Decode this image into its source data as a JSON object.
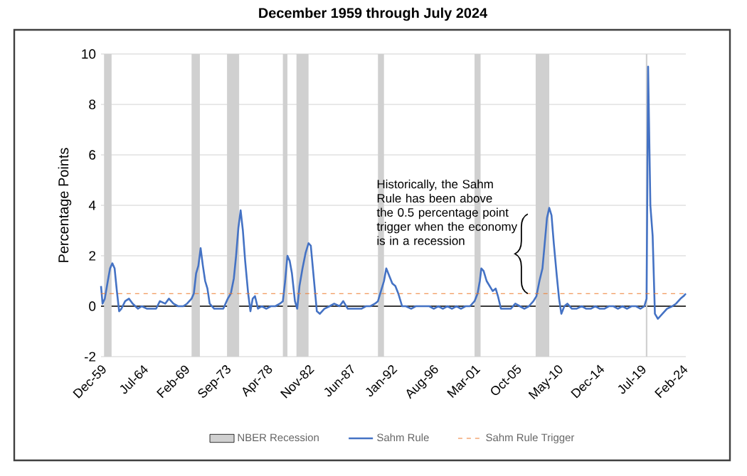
{
  "chart_data": {
    "type": "line",
    "title": "December 1959 through July 2024",
    "ylabel": "Percentage Points",
    "annotations": [
      {
        "text": "Historically, the Sahm Rule has been above the 0.5 percentage point trigger when the economy is in a recession",
        "x": "2006-06",
        "y": 0.5
      }
    ],
    "xlim": [
      "1959-12",
      "2024-07"
    ],
    "xticks": [
      {
        "value": "1959-12",
        "label": "Dec-59"
      },
      {
        "value": "1964-07",
        "label": "Jul-64"
      },
      {
        "value": "1969-02",
        "label": "Feb-69"
      },
      {
        "value": "1973-09",
        "label": "Sep-73"
      },
      {
        "value": "1978-04",
        "label": "Apr-78"
      },
      {
        "value": "1982-11",
        "label": "Nov-82"
      },
      {
        "value": "1987-06",
        "label": "Jun-87"
      },
      {
        "value": "1992-01",
        "label": "Jan-92"
      },
      {
        "value": "1996-08",
        "label": "Aug-96"
      },
      {
        "value": "2001-03",
        "label": "Mar-01"
      },
      {
        "value": "2005-10",
        "label": "Oct-05"
      },
      {
        "value": "2010-05",
        "label": "May-10"
      },
      {
        "value": "2014-12",
        "label": "Dec-14"
      },
      {
        "value": "2019-07",
        "label": "Jul-19"
      },
      {
        "value": "2024-02",
        "label": "Feb-24"
      }
    ],
    "ylim": [
      -2,
      10
    ],
    "yticks": [
      -2,
      0,
      2,
      4,
      6,
      8,
      10
    ],
    "grid": "y",
    "legend": "bottom",
    "series": [
      {
        "name": "Sahm Rule",
        "color": "#4472c4",
        "line_style": "solid",
        "x": [
          "1959-12",
          "1960-02",
          "1960-05",
          "1960-09",
          "1960-12",
          "1961-03",
          "1961-06",
          "1961-09",
          "1961-12",
          "1962-03",
          "1962-08",
          "1963-01",
          "1963-06",
          "1964-01",
          "1964-06",
          "1965-01",
          "1965-06",
          "1966-01",
          "1966-06",
          "1967-01",
          "1967-06",
          "1967-12",
          "1968-06",
          "1969-01",
          "1969-06",
          "1969-12",
          "1970-03",
          "1970-06",
          "1970-09",
          "1970-12",
          "1971-03",
          "1971-06",
          "1971-09",
          "1971-12",
          "1972-06",
          "1973-01",
          "1973-06",
          "1973-12",
          "1974-04",
          "1974-08",
          "1974-11",
          "1975-02",
          "1975-05",
          "1975-08",
          "1975-11",
          "1976-03",
          "1976-06",
          "1976-09",
          "1976-12",
          "1977-04",
          "1977-09",
          "1978-03",
          "1978-09",
          "1979-03",
          "1979-09",
          "1980-01",
          "1980-04",
          "1980-07",
          "1980-10",
          "1981-01",
          "1981-05",
          "1981-08",
          "1981-11",
          "1982-03",
          "1982-07",
          "1982-11",
          "1983-02",
          "1983-06",
          "1983-10",
          "1984-02",
          "1984-08",
          "1985-03",
          "1985-09",
          "1986-04",
          "1986-09",
          "1987-03",
          "1987-09",
          "1988-03",
          "1988-09",
          "1989-03",
          "1989-09",
          "1990-03",
          "1990-07",
          "1990-11",
          "1991-03",
          "1991-06",
          "1991-10",
          "1992-02",
          "1992-06",
          "1992-10",
          "1993-03",
          "1993-08",
          "1994-03",
          "1994-09",
          "1995-03",
          "1995-09",
          "1996-03",
          "1996-09",
          "1997-03",
          "1997-09",
          "1998-03",
          "1998-09",
          "1999-03",
          "1999-09",
          "2000-03",
          "2000-09",
          "2001-03",
          "2001-07",
          "2001-10",
          "2001-12",
          "2002-03",
          "2002-07",
          "2002-11",
          "2003-03",
          "2003-07",
          "2003-10",
          "2004-02",
          "2004-08",
          "2005-03",
          "2005-09",
          "2006-03",
          "2006-09",
          "2007-03",
          "2007-09",
          "2008-01",
          "2008-05",
          "2008-09",
          "2008-12",
          "2009-03",
          "2009-06",
          "2009-09",
          "2009-12",
          "2010-04",
          "2010-07",
          "2010-10",
          "2011-02",
          "2011-06",
          "2011-12",
          "2012-06",
          "2013-01",
          "2013-07",
          "2014-01",
          "2014-07",
          "2015-01",
          "2015-07",
          "2016-01",
          "2016-07",
          "2017-01",
          "2017-07",
          "2018-01",
          "2018-07",
          "2019-01",
          "2019-07",
          "2019-12",
          "2020-03",
          "2020-05",
          "2020-08",
          "2020-11",
          "2021-02",
          "2021-06",
          "2021-12",
          "2022-06",
          "2023-01",
          "2023-06",
          "2023-12",
          "2024-04",
          "2024-07"
        ],
        "values": [
          0.8,
          0.1,
          0.3,
          1.0,
          1.5,
          1.7,
          1.5,
          0.6,
          -0.2,
          -0.1,
          0.2,
          0.3,
          0.1,
          -0.1,
          0.0,
          -0.1,
          -0.1,
          -0.1,
          0.2,
          0.1,
          0.3,
          0.1,
          0.0,
          0.0,
          0.1,
          0.3,
          0.5,
          1.3,
          1.6,
          2.3,
          1.6,
          1.0,
          0.7,
          0.1,
          -0.1,
          -0.1,
          -0.1,
          0.3,
          0.5,
          1.1,
          2.0,
          3.1,
          3.8,
          3.0,
          1.8,
          0.5,
          -0.2,
          0.3,
          0.4,
          -0.1,
          0.0,
          -0.1,
          0.0,
          0.0,
          0.1,
          0.2,
          1.0,
          2.0,
          1.8,
          1.3,
          0.2,
          -0.1,
          0.8,
          1.5,
          2.1,
          2.5,
          2.4,
          1.1,
          -0.2,
          -0.3,
          -0.1,
          0.0,
          0.1,
          0.0,
          0.2,
          -0.1,
          -0.1,
          -0.1,
          -0.1,
          0.0,
          0.0,
          0.1,
          0.2,
          0.6,
          1.0,
          1.5,
          1.2,
          0.9,
          0.8,
          0.5,
          0.0,
          0.0,
          -0.1,
          0.0,
          0.0,
          0.0,
          0.0,
          -0.1,
          0.0,
          -0.1,
          0.0,
          -0.1,
          0.0,
          -0.1,
          0.0,
          0.0,
          0.2,
          0.5,
          1.0,
          1.5,
          1.4,
          1.0,
          0.8,
          0.6,
          0.7,
          0.4,
          -0.1,
          -0.1,
          -0.1,
          0.1,
          0.0,
          -0.1,
          0.0,
          0.2,
          0.4,
          1.0,
          1.5,
          2.5,
          3.5,
          3.9,
          3.6,
          2.5,
          1.2,
          0.3,
          -0.3,
          0.0,
          0.1,
          -0.1,
          -0.1,
          0.0,
          -0.1,
          -0.1,
          0.0,
          -0.1,
          -0.1,
          0.0,
          0.0,
          -0.1,
          0.0,
          -0.1,
          0.0,
          0.0,
          -0.1,
          0.0,
          0.3,
          9.5,
          4.0,
          2.8,
          -0.3,
          -0.5,
          -0.3,
          -0.1,
          0.0,
          0.1,
          0.3,
          0.4,
          0.5
        ]
      }
    ],
    "ref_lines": [
      {
        "axis": "y",
        "value": 0.5,
        "label": "Sahm Rule Trigger",
        "color": "#ed7d31",
        "line_style": "dashed"
      }
    ],
    "bands": [
      {
        "axis": "x",
        "from": "1960-04",
        "to": "1961-02",
        "label": "NBER Recession",
        "color": "#d0d0d0"
      },
      {
        "axis": "x",
        "from": "1969-12",
        "to": "1970-11",
        "color": "#d0d0d0"
      },
      {
        "axis": "x",
        "from": "1973-11",
        "to": "1975-03",
        "color": "#d0d0d0"
      },
      {
        "axis": "x",
        "from": "1980-01",
        "to": "1980-07",
        "color": "#d0d0d0"
      },
      {
        "axis": "x",
        "from": "1981-07",
        "to": "1982-11",
        "color": "#d0d0d0"
      },
      {
        "axis": "x",
        "from": "1990-07",
        "to": "1991-03",
        "color": "#d0d0d0"
      },
      {
        "axis": "x",
        "from": "2001-03",
        "to": "2001-11",
        "color": "#d0d0d0"
      },
      {
        "axis": "x",
        "from": "2007-12",
        "to": "2009-06",
        "color": "#d0d0d0"
      },
      {
        "axis": "x",
        "from": "2020-02",
        "to": "2020-04",
        "color": "#d0d0d0"
      }
    ]
  }
}
